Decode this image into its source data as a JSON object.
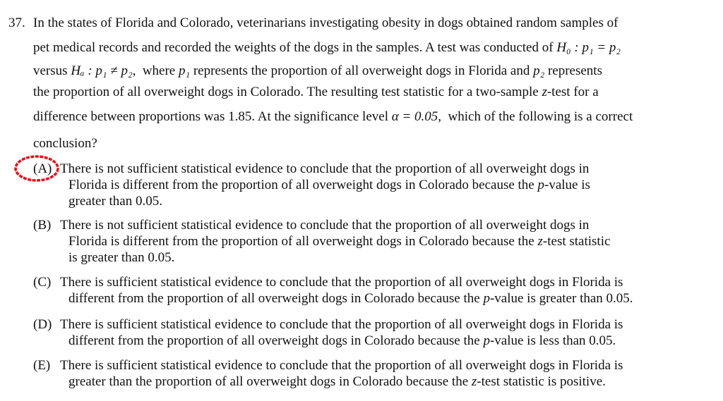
{
  "question": {
    "number": "37.",
    "lines": [
      [
        "In the states of Florida and Colorado, veterinarians investigating obesity in dogs obtained random samples of"
      ],
      [
        "pet medical records and recorded the weights of the dogs in the samples. A test was conducted of ",
        {
          "text": "H₀ : p₁ = p₂",
          "italic": true
        }
      ],
      [
        "versus ",
        {
          "text": "Hₐ : p₁ ≠ p₂",
          "italic": true
        },
        ",  where ",
        {
          "text": "p₁",
          "italic": true
        },
        " represents the proportion of all overweight dogs in Florida and ",
        {
          "text": "p₂",
          "italic": true
        },
        " represents"
      ],
      [
        "the proportion of all overweight dogs in Colorado. The resulting test statistic for a two-sample ",
        {
          "text": "z",
          "italic": true
        },
        "-test for a"
      ],
      [
        "difference between proportions was 1.85. At the significance level ",
        {
          "text": "α = 0.05",
          "italic": true
        },
        ",  which of the following is a correct"
      ],
      [
        "conclusion?"
      ]
    ]
  },
  "options": [
    {
      "label": "(A)",
      "lines": [
        [
          "There is not sufficient statistical evidence to conclude that the proportion of all overweight dogs in"
        ],
        [
          "Florida is different from the proportion of all overweight dogs in Colorado because the ",
          {
            "text": "p",
            "italic": true
          },
          "-value is"
        ],
        [
          "greater than 0.05."
        ]
      ]
    },
    {
      "label": "(B)",
      "lines": [
        [
          "There is not sufficient statistical evidence to conclude that the proportion of all overweight dogs in"
        ],
        [
          "Florida is different from the proportion of all overweight dogs in Colorado because the ",
          {
            "text": "z",
            "italic": true
          },
          "-test statistic"
        ],
        [
          "is greater than 0.05."
        ]
      ]
    },
    {
      "label": "(C)",
      "lines": [
        [
          "There is sufficient statistical evidence to conclude that the proportion of all overweight dogs in Florida is"
        ],
        [
          "different from the proportion of all overweight dogs in Colorado because the ",
          {
            "text": "p",
            "italic": true
          },
          "-value is greater than 0.05."
        ]
      ]
    },
    {
      "label": "(D)",
      "lines": [
        [
          "There is sufficient statistical evidence to conclude that the proportion of all overweight dogs in Florida is"
        ],
        [
          "different from the proportion of all overweight dogs in Colorado because the ",
          {
            "text": "p",
            "italic": true
          },
          "-value is less than 0.05."
        ]
      ]
    },
    {
      "label": "(E)",
      "lines": [
        [
          "There is sufficient statistical evidence to conclude that the proportion of all overweight dogs in Florida is"
        ],
        [
          "greater than the proportion of all overweight dogs in Colorado because the ",
          {
            "text": "z",
            "italic": true
          },
          "-test statistic is positive."
        ]
      ]
    }
  ]
}
